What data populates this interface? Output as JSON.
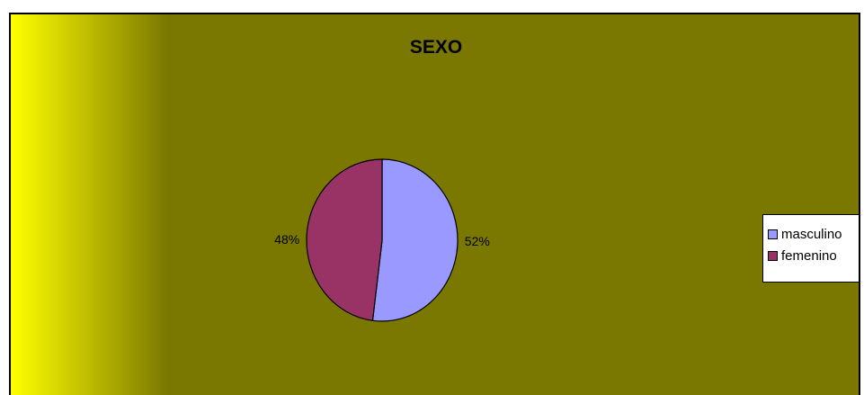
{
  "chart_data": {
    "type": "pie",
    "title": "SEXO",
    "slices": [
      {
        "name": "masculino",
        "value": 52,
        "label": "52%",
        "color": "#9999ff"
      },
      {
        "name": "femenino",
        "value": 48,
        "label": "48%",
        "color": "#993366"
      }
    ],
    "legend_position": "right",
    "background_color": "#7a7800",
    "gradient_color": "#ffff00"
  }
}
